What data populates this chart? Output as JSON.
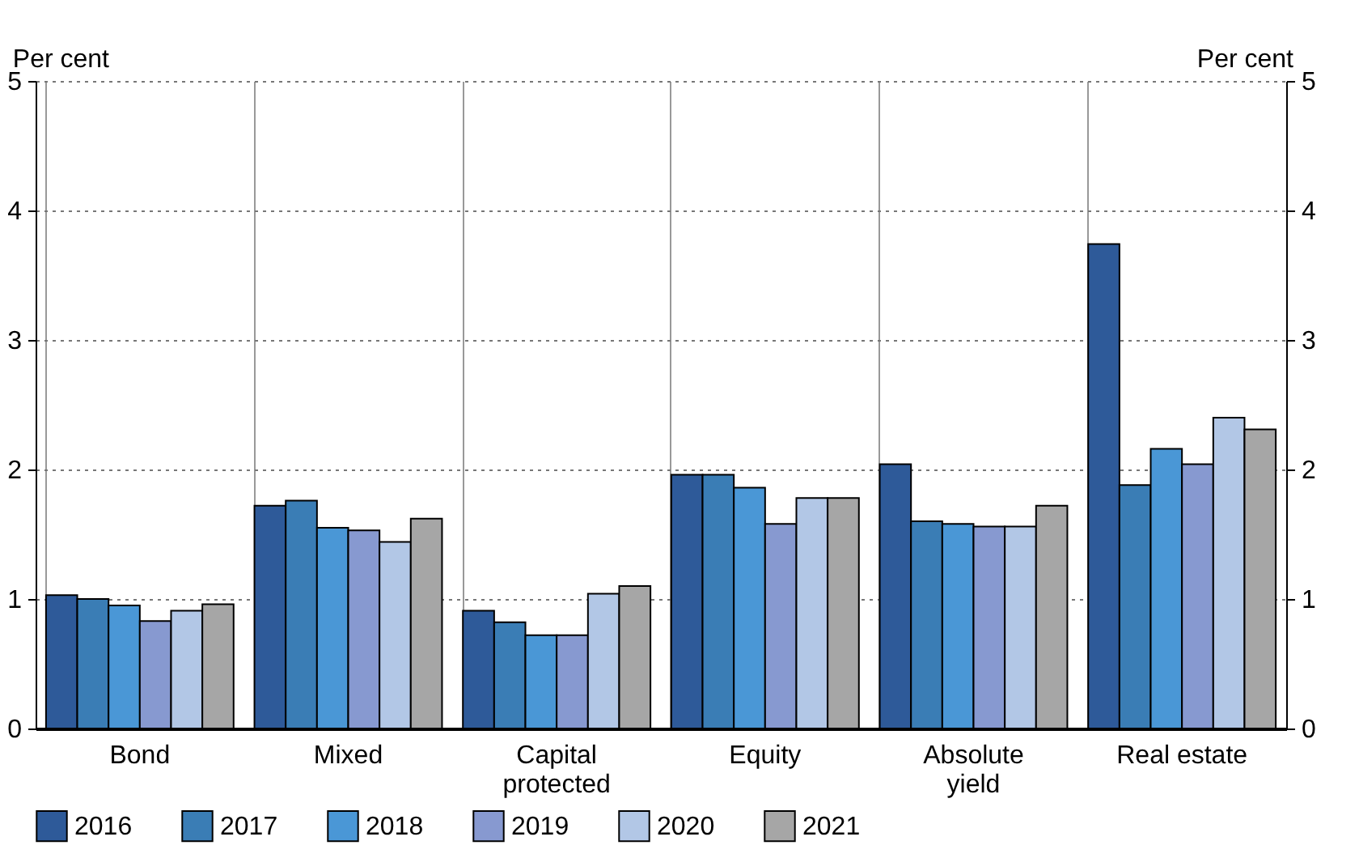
{
  "chart_data": {
    "type": "bar",
    "ylabel": "Per cent",
    "y2label": "Per cent",
    "categories": [
      "Bond",
      "Mixed",
      "Capital protected",
      "Equity",
      "Absolute yield",
      "Real estate"
    ],
    "series": [
      {
        "name": "2016",
        "color": "#2e5a99",
        "values": [
          1.03,
          1.72,
          0.91,
          1.96,
          2.04,
          3.74
        ]
      },
      {
        "name": "2017",
        "color": "#3a7db5",
        "values": [
          1.0,
          1.76,
          0.82,
          1.96,
          1.6,
          1.88
        ]
      },
      {
        "name": "2018",
        "color": "#4a97d6",
        "values": [
          0.95,
          1.55,
          0.72,
          1.86,
          1.58,
          2.16
        ]
      },
      {
        "name": "2019",
        "color": "#8799d0",
        "values": [
          0.83,
          1.53,
          0.72,
          1.58,
          1.56,
          2.04
        ]
      },
      {
        "name": "2020",
        "color": "#b2c7e6",
        "values": [
          0.91,
          1.44,
          1.04,
          1.78,
          1.56,
          2.4
        ]
      },
      {
        "name": "2021",
        "color": "#a6a6a6",
        "values": [
          0.96,
          1.62,
          1.1,
          1.78,
          1.72,
          2.31
        ]
      }
    ],
    "ylim": [
      0,
      5
    ],
    "yticks": [
      0,
      1,
      2,
      3,
      4,
      5
    ],
    "y2lim": [
      0,
      5
    ],
    "y2ticks": [
      0,
      1,
      2,
      3,
      4,
      5
    ],
    "grid": "y",
    "legend": "bottom"
  }
}
